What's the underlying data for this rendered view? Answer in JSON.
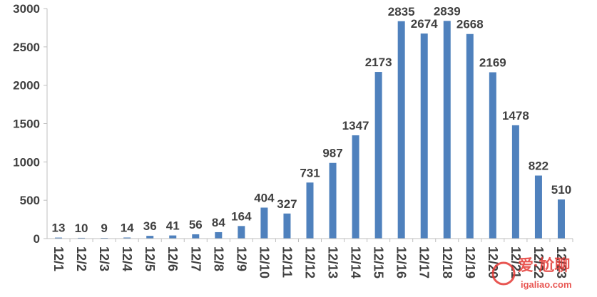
{
  "chart_data": {
    "type": "bar",
    "categories": [
      "12/1",
      "12/2",
      "12/3",
      "12/4",
      "12/5",
      "12/6",
      "12/7",
      "12/8",
      "12/9",
      "12/10",
      "12/11",
      "12/12",
      "12/13",
      "12/14",
      "12/15",
      "12/16",
      "12/17",
      "12/18",
      "12/19",
      "12/20",
      "12/21",
      "12/22",
      "12/23"
    ],
    "values": [
      13,
      10,
      9,
      14,
      36,
      41,
      56,
      84,
      164,
      404,
      327,
      731,
      987,
      1347,
      2173,
      2835,
      2674,
      2839,
      2668,
      2169,
      1478,
      822,
      510
    ],
    "title": "",
    "xlabel": "",
    "ylabel": "",
    "ylim": [
      0,
      3000
    ],
    "yticks": [
      0,
      500,
      1000,
      1500,
      2000,
      2500,
      3000
    ],
    "bar_color": "#4f81bd",
    "grid": false,
    "data_labels": true
  },
  "watermark": {
    "line1": "爱·尬聊",
    "line2": "igaliao.com"
  }
}
